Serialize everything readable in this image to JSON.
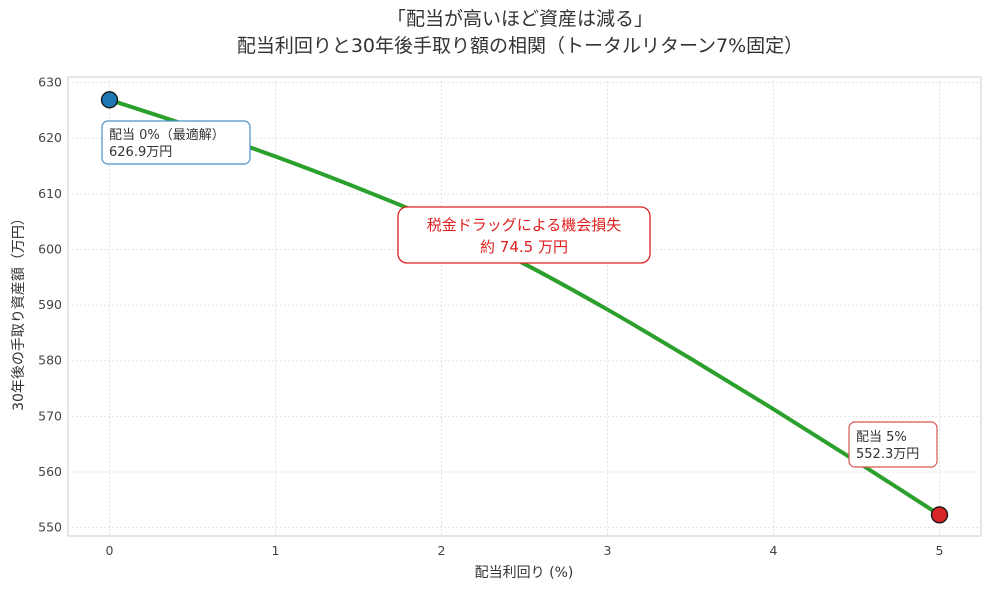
{
  "chart_data": {
    "type": "line",
    "title_lines": [
      "「配当が高いほど資産は減る」",
      "配当利回りと30年後手取り額の相関（トータルリターン7%固定）"
    ],
    "xlabel": "配当利回り (%)",
    "ylabel": "30年後の手取り資産額（万円）",
    "xlim": [
      -0.25,
      5.25
    ],
    "ylim": [
      548.5,
      631
    ],
    "xticks": [
      0,
      1,
      2,
      3,
      4,
      5
    ],
    "yticks": [
      550,
      560,
      570,
      580,
      590,
      600,
      610,
      620,
      630
    ],
    "grid": true,
    "series": [
      {
        "x": [
          0,
          0.5,
          1,
          1.5,
          2,
          2.5,
          3,
          3.5,
          4,
          4.5,
          5
        ],
        "y": [
          626.9,
          622.0,
          616.7,
          611.0,
          604.8,
          597.4,
          589.2,
          580.4,
          571.3,
          561.9,
          552.3
        ],
        "color": "#2ca02c"
      }
    ],
    "markers": [
      {
        "x": 0,
        "y": 626.9,
        "color": "#1f77b4"
      },
      {
        "x": 5,
        "y": 552.3,
        "color": "#d62728"
      }
    ],
    "annotations": [
      {
        "lines": [
          "配当 0%（最適解）",
          "626.9万円"
        ],
        "color": "#4a90c8"
      },
      {
        "lines": [
          "配当 5%",
          "552.3万円"
        ],
        "color": "#d9534f"
      },
      {
        "lines": [
          "税金ドラッグによる機会損失",
          "約 74.5 万円"
        ],
        "color": "#e02020"
      }
    ]
  }
}
